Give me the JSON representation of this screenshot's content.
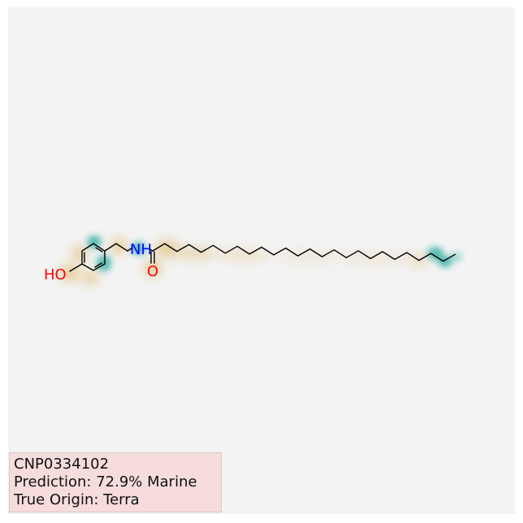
{
  "molecule": {
    "atoms": {
      "hydroxyl": "HO",
      "amine": "NH",
      "carbonyl_oxygen": "O"
    },
    "colors": {
      "oxygen": "#ff0000",
      "nitrogen": "#0000ff",
      "bond": "#000000",
      "marine_highlight": "#1aa69a",
      "terra_highlight": "#d9a441",
      "background": "#f3f3f3"
    }
  },
  "info": {
    "compound_id": "CNP0334102",
    "prediction": "Prediction: 72.9% Marine",
    "true_origin": "True Origin: Terra",
    "box_color": "#f6dcdc"
  }
}
